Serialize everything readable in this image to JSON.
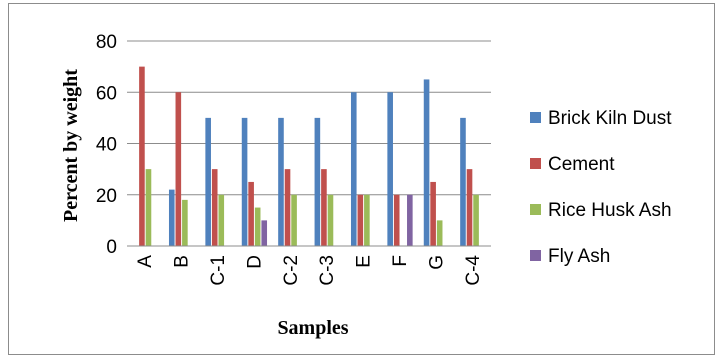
{
  "chart_data": {
    "type": "bar",
    "title": "",
    "xlabel": "Samples",
    "ylabel": "Percent  by weight",
    "ylim": [
      0,
      80
    ],
    "yticks": [
      0,
      20,
      40,
      60,
      80
    ],
    "grid": true,
    "legend_position": "right",
    "categories": [
      "A",
      "B",
      "C-1",
      "D",
      "C-2",
      "C-3",
      "E",
      "F",
      "G",
      "C-4"
    ],
    "series": [
      {
        "name": "Brick Kiln Dust",
        "color": "#4f81bd",
        "values": [
          0,
          22,
          50,
          50,
          50,
          50,
          60,
          60,
          65,
          50
        ]
      },
      {
        "name": "Cement",
        "color": "#c0504d",
        "values": [
          70,
          60,
          30,
          25,
          30,
          30,
          20,
          20,
          25,
          30
        ]
      },
      {
        "name": "Rice Husk Ash",
        "color": "#9bbb59",
        "values": [
          30,
          18,
          20,
          15,
          20,
          20,
          20,
          0,
          10,
          20
        ]
      },
      {
        "name": "Fly Ash",
        "color": "#8064a2",
        "values": [
          0,
          0,
          0,
          10,
          0,
          0,
          0,
          20,
          0,
          0
        ]
      }
    ]
  }
}
